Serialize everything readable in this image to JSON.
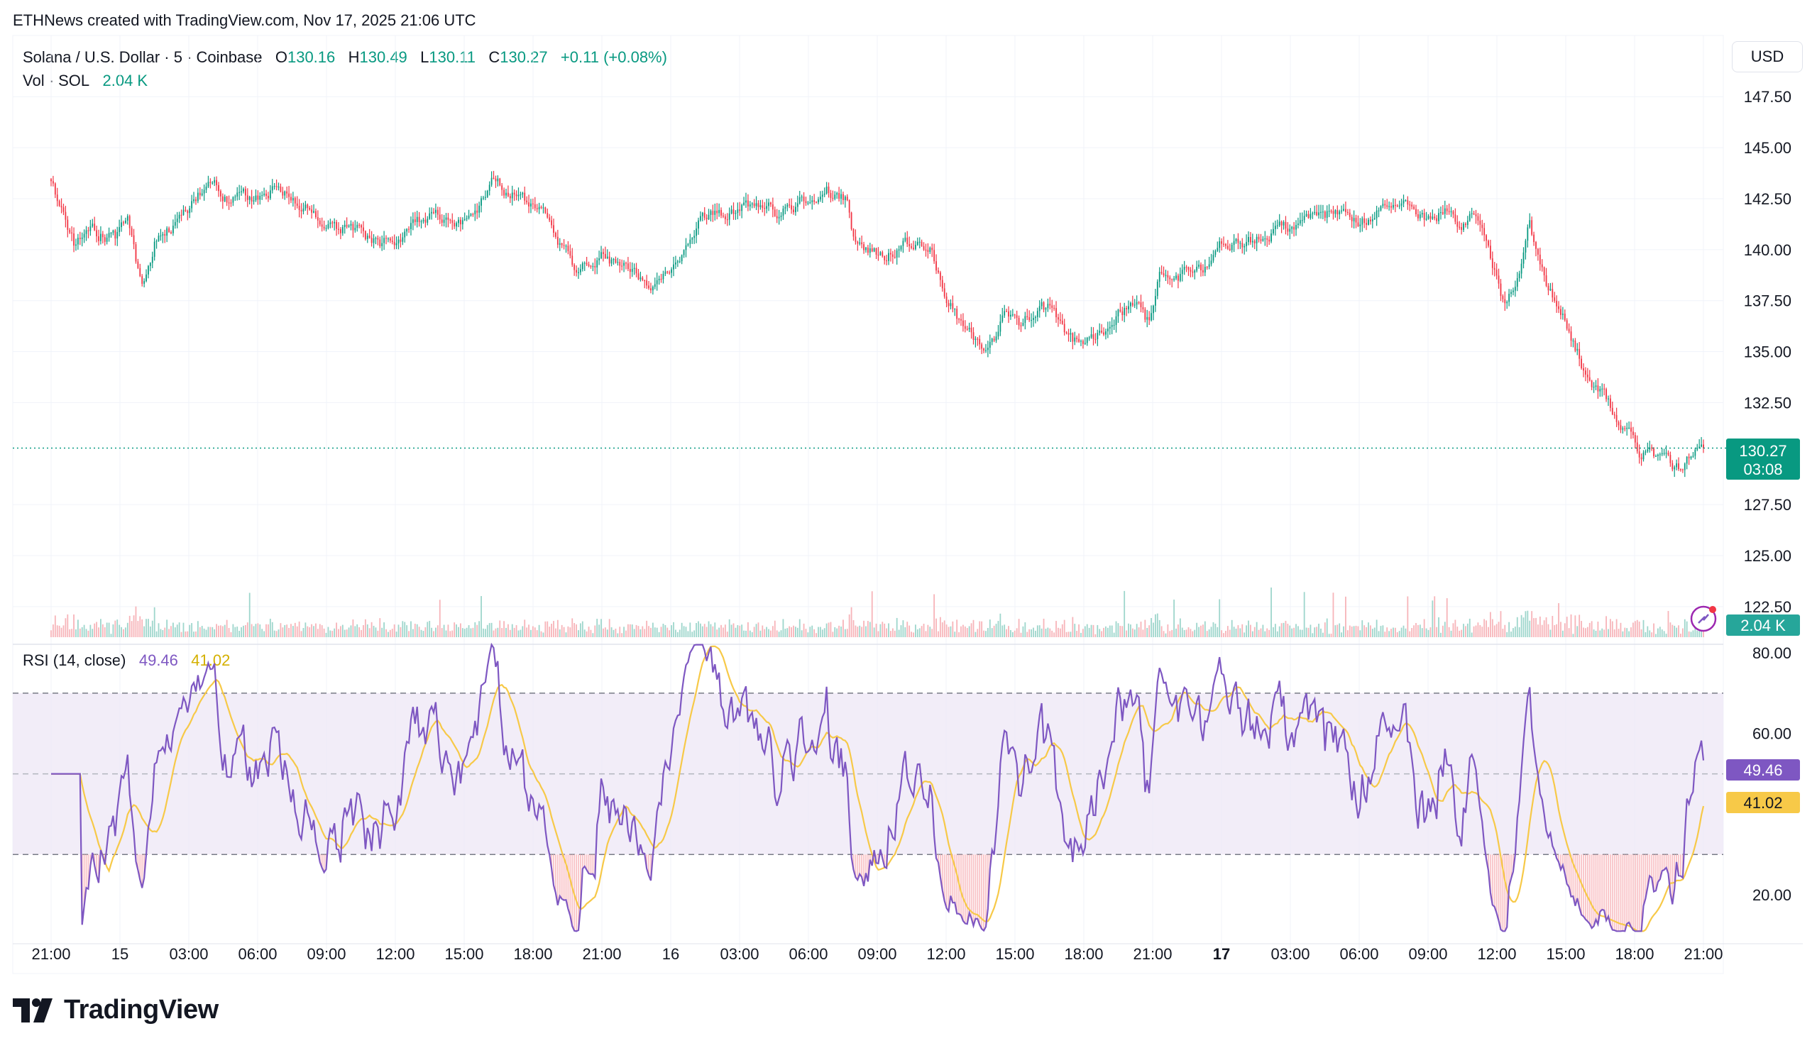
{
  "credit": "ETHNews created with TradingView.com, Nov 17, 2025 21:06 UTC",
  "legend": {
    "symbol": "Solana / U.S. Dollar · 5 · Coinbase",
    "o_label": "O",
    "o": "130.16",
    "h_label": "H",
    "h": "130.49",
    "l_label": "L",
    "l": "130.11",
    "c_label": "C",
    "c": "130.27",
    "change": "+0.11 (+0.08%)",
    "vol_label": "Vol · SOL",
    "vol": "2.04 K",
    "rsi_label": "RSI (14, close)",
    "rsi": "49.46",
    "rsi_ma": "41.02"
  },
  "currency_button": "USD",
  "badges": {
    "price": "130.27",
    "countdown": "03:08",
    "volume": "2.04 K",
    "rsi": "49.46",
    "rsi_ma": "41.02"
  },
  "brand": "TradingView",
  "colors": {
    "up": "#089981",
    "down": "#f23645",
    "rsi_line": "#7e57c2",
    "rsi_ma": "#f7c948",
    "rsi_band": "#ede7f6",
    "volume_up": "#9ed6cc",
    "volume_down": "#f7b4b9"
  },
  "chart_data": {
    "type": "candlestick",
    "interval": "5",
    "price_axis": {
      "ticks": [
        "147.50",
        "145.00",
        "142.50",
        "140.00",
        "137.50",
        "135.00",
        "132.50",
        "127.50",
        "125.00",
        "122.50"
      ],
      "range": [
        121.0,
        150.5
      ]
    },
    "rsi_axis": {
      "ticks": [
        "80.00",
        "60.00",
        "20.00"
      ],
      "range": [
        10,
        80
      ],
      "bands": [
        30,
        70
      ],
      "mid": 50
    },
    "time_axis": {
      "ticks": [
        "21:00",
        "15",
        "03:00",
        "06:00",
        "09:00",
        "12:00",
        "15:00",
        "18:00",
        "21:00",
        "16",
        "03:00",
        "06:00",
        "09:00",
        "12:00",
        "15:00",
        "18:00",
        "21:00",
        "17",
        "03:00",
        "06:00",
        "09:00",
        "12:00",
        "15:00",
        "18:00",
        "21:00"
      ],
      "bold": [
        "17"
      ]
    },
    "anchors": [
      [
        0,
        143.3
      ],
      [
        0.018,
        140.0
      ],
      [
        0.028,
        141.0
      ],
      [
        0.048,
        140.5
      ],
      [
        0.058,
        141.2
      ],
      [
        0.068,
        138.0
      ],
      [
        0.078,
        140.5
      ],
      [
        0.095,
        141.2
      ],
      [
        0.108,
        142.5
      ],
      [
        0.12,
        143.3
      ],
      [
        0.135,
        142.5
      ],
      [
        0.16,
        142.6
      ],
      [
        0.17,
        143.3
      ],
      [
        0.188,
        142.2
      ],
      [
        0.205,
        141.0
      ],
      [
        0.225,
        141.0
      ],
      [
        0.245,
        140.2
      ],
      [
        0.262,
        140.6
      ],
      [
        0.28,
        141.6
      ],
      [
        0.3,
        141.8
      ],
      [
        0.315,
        141.2
      ],
      [
        0.33,
        143.2
      ],
      [
        0.345,
        142.7
      ],
      [
        0.365,
        142.0
      ],
      [
        0.385,
        140.0
      ],
      [
        0.395,
        139.0
      ],
      [
        0.415,
        139.7
      ],
      [
        0.435,
        138.8
      ],
      [
        0.455,
        138.4
      ],
      [
        0.47,
        139.8
      ],
      [
        0.485,
        141.5
      ],
      [
        0.5,
        141.6
      ],
      [
        0.52,
        142.0
      ],
      [
        0.545,
        141.8
      ],
      [
        0.565,
        142.4
      ],
      [
        0.58,
        143.3
      ],
      [
        0.595,
        142.4
      ],
      [
        0.602,
        140.0
      ],
      [
        0.625,
        139.8
      ],
      [
        0.65,
        140.4
      ],
      [
        0.66,
        139.8
      ],
      [
        0.672,
        137.5
      ],
      [
        0.685,
        135.8
      ],
      [
        0.7,
        135.5
      ],
      [
        0.708,
        135.8
      ],
      [
        0.713,
        137.2
      ],
      [
        0.725,
        136.0
      ],
      [
        0.74,
        137.5
      ],
      [
        0.752,
        136.8
      ],
      [
        0.765,
        135.6
      ],
      [
        0.785,
        135.8
      ],
      [
        0.795,
        136.5
      ],
      [
        0.81,
        137.5
      ],
      [
        0.822,
        136.3
      ],
      [
        0.83,
        139.0
      ],
      [
        0.845,
        138.8
      ],
      [
        0.86,
        139.0
      ],
      [
        0.875,
        140.3
      ],
      [
        0.9,
        140.4
      ],
      [
        0.925,
        141.0
      ],
      [
        0.95,
        141.5
      ],
      [
        0.97,
        142.2
      ],
      [
        0.985,
        141.4
      ],
      [
        1.0,
        142.2
      ],
      [
        1.02,
        142.0
      ],
      [
        1.03,
        141.5
      ],
      [
        1.045,
        142.0
      ],
      [
        1.055,
        141.4
      ],
      [
        1.068,
        141.8
      ],
      [
        1.075,
        140.0
      ],
      [
        1.088,
        137.3
      ],
      [
        1.098,
        138.5
      ],
      [
        1.107,
        141.2
      ],
      [
        1.115,
        139.0
      ],
      [
        1.125,
        137.5
      ],
      [
        1.14,
        135.5
      ],
      [
        1.15,
        133.8
      ],
      [
        1.16,
        133.0
      ],
      [
        1.175,
        131.2
      ],
      [
        1.19,
        130.0
      ],
      [
        1.205,
        129.8
      ],
      [
        1.218,
        129.3
      ],
      [
        1.23,
        130.0
      ],
      [
        1.237,
        130.27
      ]
    ]
  }
}
